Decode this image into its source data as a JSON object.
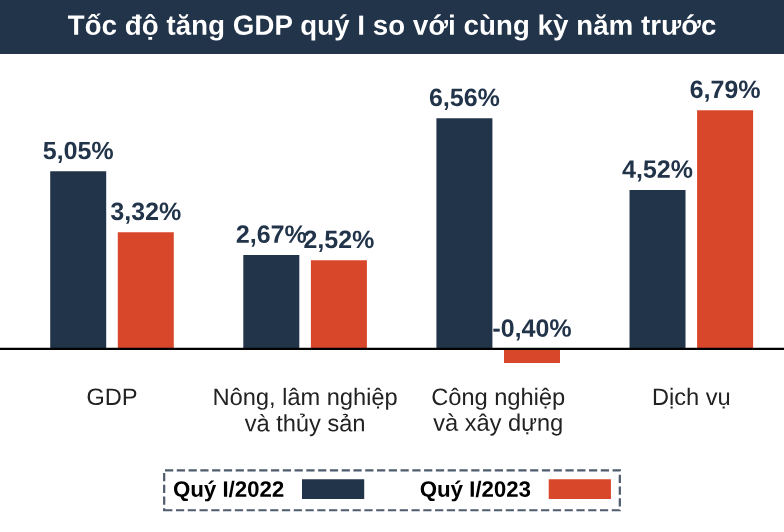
{
  "chart_data": {
    "type": "bar",
    "title": "Tốc độ tăng GDP quý I so với cùng kỳ năm trước",
    "categories": [
      "GDP",
      "Nông, lâm nghiệp\nvà thủy sản",
      "Công nghiệp\nvà xây dựng",
      "Dịch vụ"
    ],
    "series": [
      {
        "name": "Quý I/2022",
        "color": "#22344a",
        "values": [
          5.05,
          2.67,
          6.56,
          4.52
        ],
        "value_labels": [
          "5,05%",
          "2,67%",
          "6,56%",
          "4,52%"
        ]
      },
      {
        "name": "Quý I/2023",
        "color": "#d9472b",
        "values": [
          3.32,
          2.52,
          -0.4,
          6.79
        ],
        "value_labels": [
          "3,32%",
          "2,52%",
          "-0,40%",
          "6,79%"
        ]
      }
    ],
    "legend": "bottom",
    "grid": false
  }
}
